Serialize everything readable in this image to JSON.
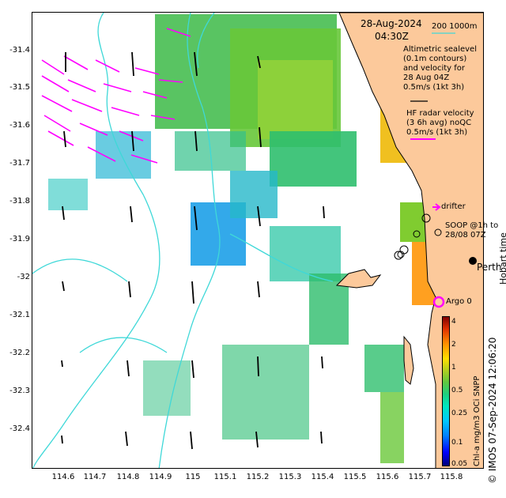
{
  "map": {
    "date_title": "28-Aug-2024",
    "time_title": "04:30Z",
    "contour_note": "200  1000m",
    "altimetry_text": [
      "Altimetric sealevel",
      "(0.1m contours)",
      "and velocity for",
      "28 Aug 04Z",
      "0.5m/s (1kt 3h)"
    ],
    "hf_text": [
      "HF radar velocity",
      "(3 6h avg) noQC",
      "0.5m/s (1kt 3h)"
    ],
    "drifter_label": "drifter",
    "soop_text": [
      "SOOP @1h to",
      "28/08 07Z"
    ],
    "perth_label": "Perth",
    "argo_label": "Argo 0",
    "hobart_label": "Hobart time",
    "colorbar_label": "Chl-a mg/m3 OCi SNPP",
    "vertical_label": "© IMOS 07-Sep-2024 12:06:20",
    "y_ticks": [
      "-31.4",
      "-31.5",
      "-31.6",
      "-31.7",
      "-31.8",
      "-31.9",
      "-32",
      "-32.1",
      "-32.2",
      "-32.3",
      "-32.4"
    ],
    "x_ticks": [
      "114.6",
      "114.7",
      "114.8",
      "114.9",
      "115",
      "115.1",
      "115.2",
      "115.3",
      "115.4",
      "115.5",
      "115.6",
      "115.7",
      "115.8"
    ],
    "colorbar_ticks": [
      "4",
      "2",
      "1",
      "0.5",
      "0.25",
      "0.1",
      "0.05"
    ],
    "colors": {
      "land": "#fcc99b",
      "contour": "#3fd8d8",
      "hf_arrow": "#ff00ff",
      "alt_arrow": "#000000"
    }
  }
}
